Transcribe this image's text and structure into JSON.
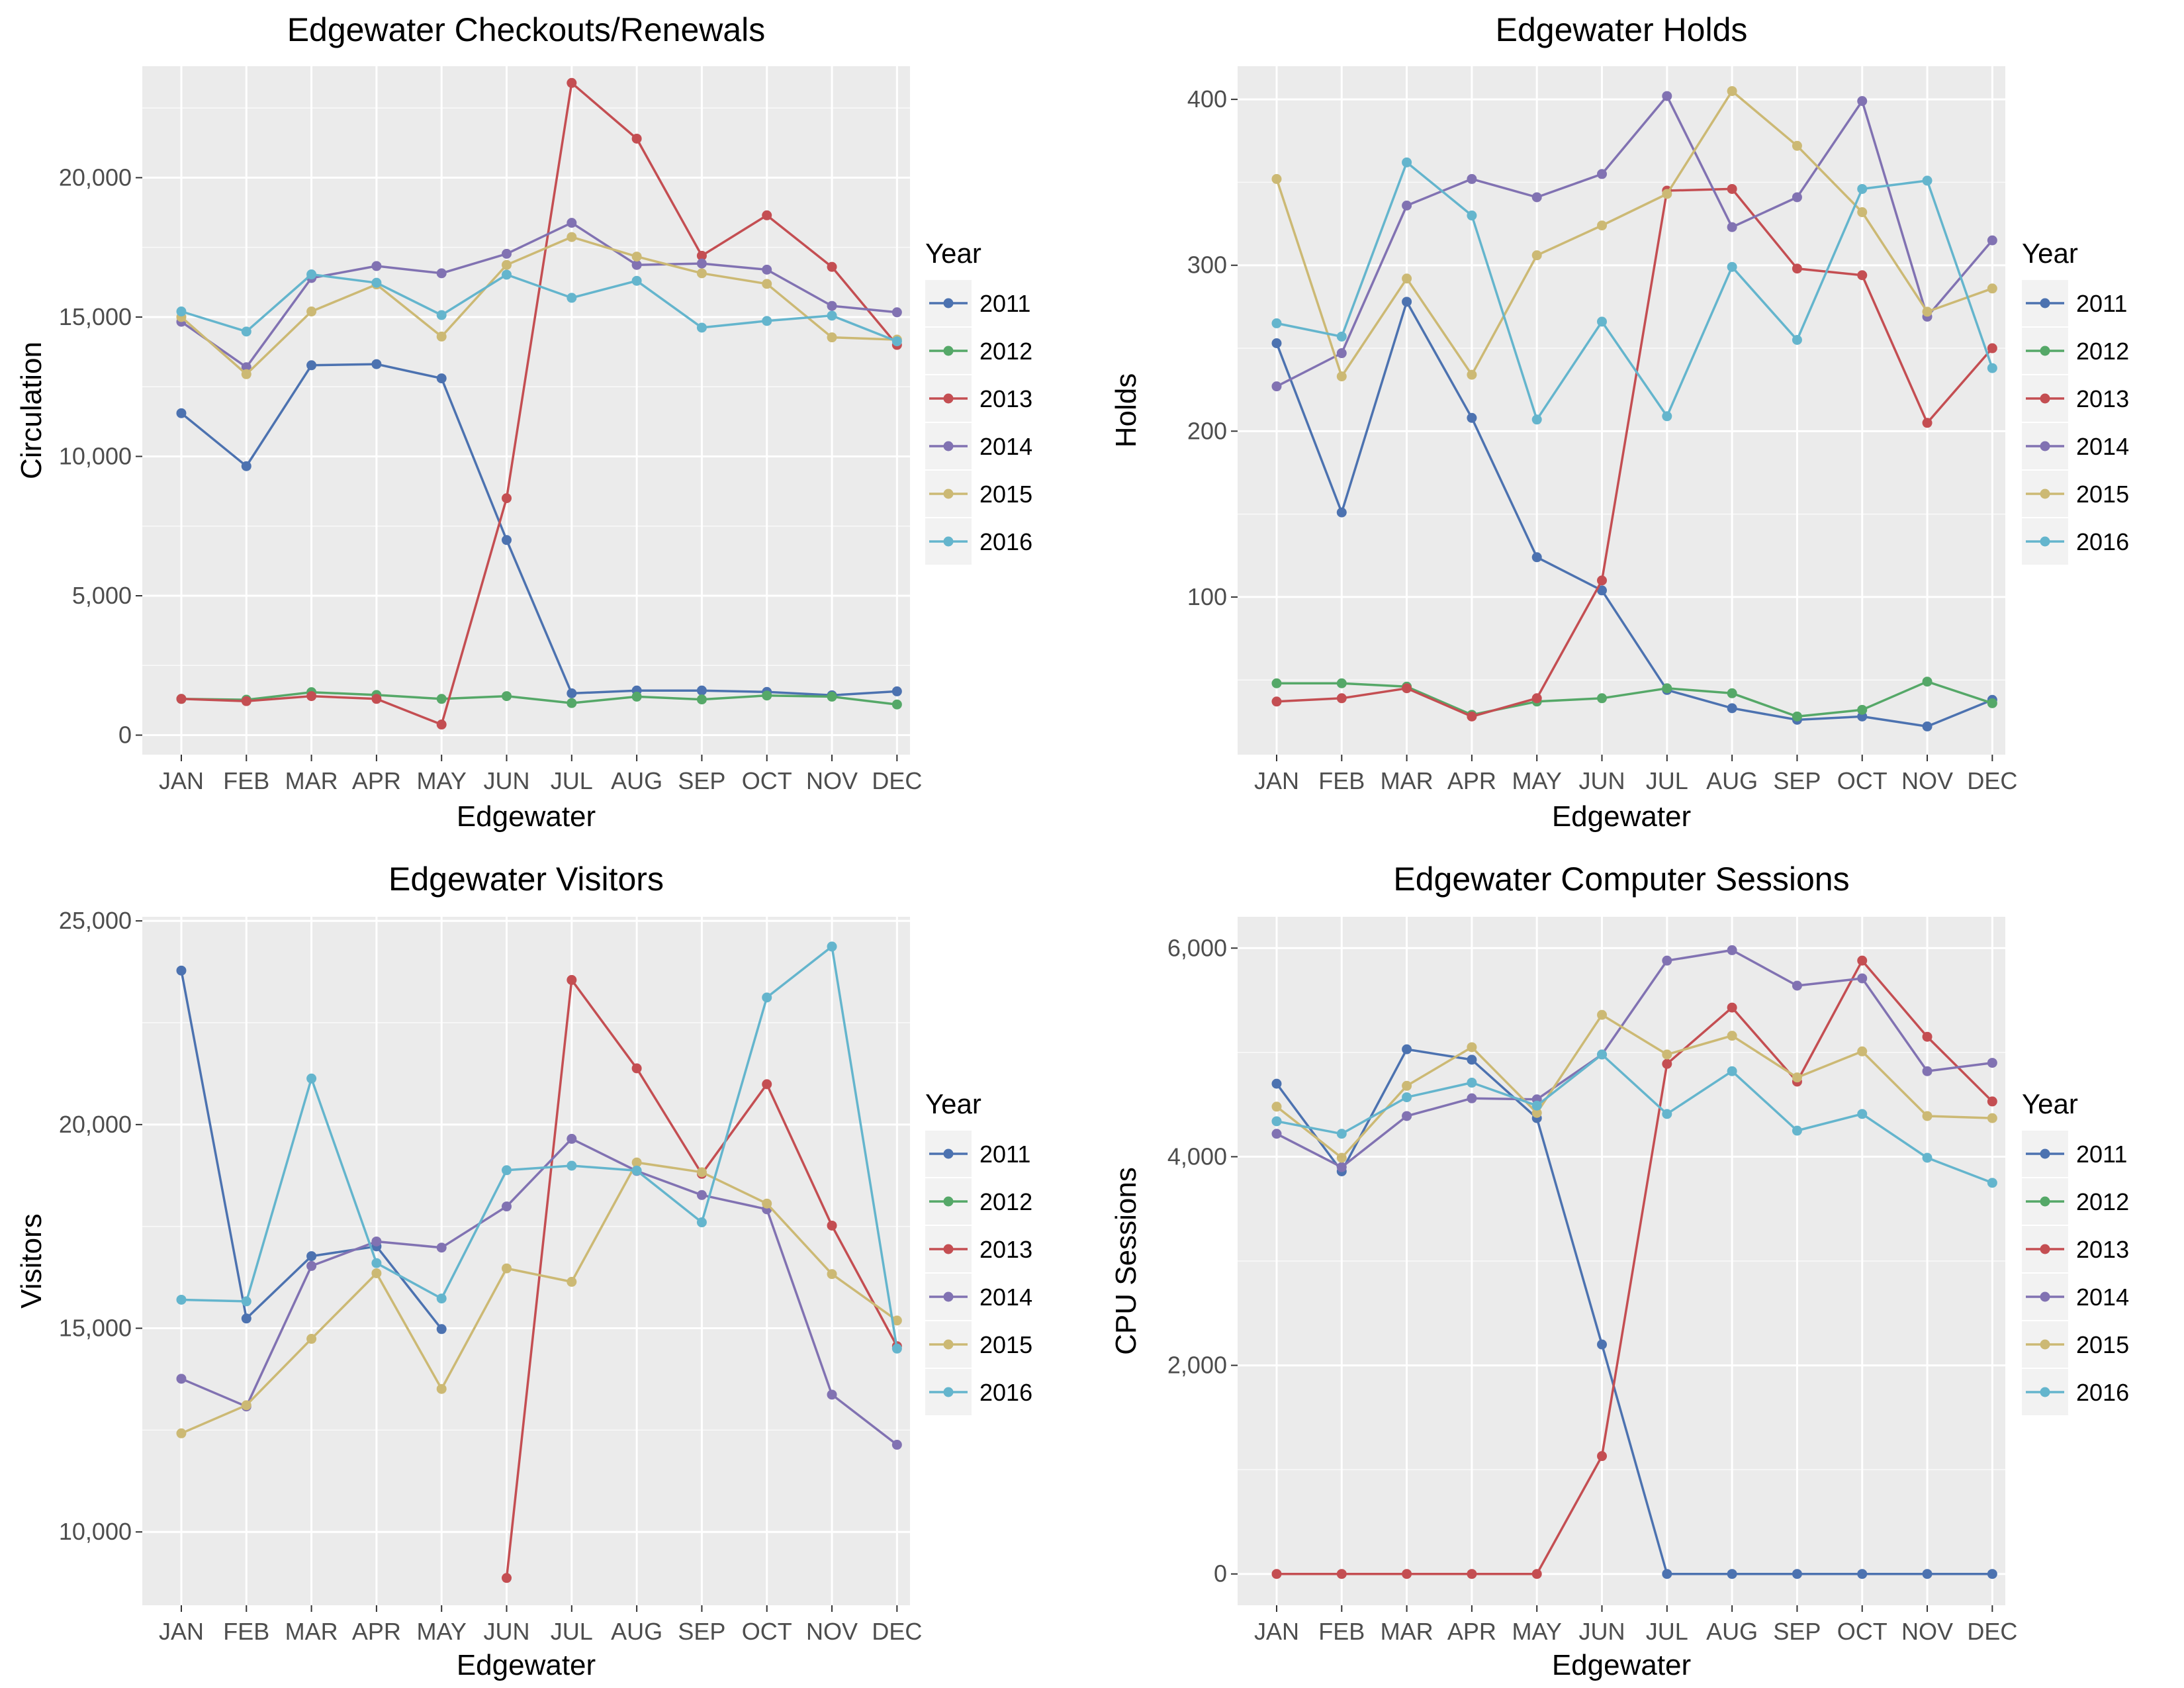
{
  "colors": {
    "2011": "#4c72b0",
    "2012": "#55a868",
    "2013": "#c44e52",
    "2014": "#8172b2",
    "2015": "#ccb974",
    "2016": "#64b5cd",
    "panel_background": "#ebebeb",
    "grid_major": "#ffffff",
    "tick_text": "#4d4d4d"
  },
  "chart_data": [
    {
      "type": "line",
      "title": "Edgewater Checkouts/Renewals",
      "xlabel": "Edgewater",
      "ylabel": "Circulation",
      "categories": [
        "JAN",
        "FEB",
        "MAR",
        "APR",
        "MAY",
        "JUN",
        "JUL",
        "AUG",
        "SEP",
        "OCT",
        "NOV",
        "DEC"
      ],
      "ylim": [
        -700,
        24000
      ],
      "yticks": [
        0,
        5000,
        10000,
        15000,
        20000
      ],
      "ytick_labels": [
        "0",
        "5,000",
        "10,000",
        "15,000",
        "20,000"
      ],
      "grid": true,
      "legend": {
        "title": "Year",
        "position": "right"
      },
      "series": [
        {
          "name": "2011",
          "values": [
            11550,
            9650,
            13270,
            13310,
            12800,
            7000,
            1500,
            1600,
            1600,
            1550,
            1430,
            1570
          ]
        },
        {
          "name": "2012",
          "values": [
            1300,
            1270,
            1540,
            1440,
            1300,
            1400,
            1150,
            1380,
            1280,
            1420,
            1380,
            1100
          ]
        },
        {
          "name": "2013",
          "values": [
            1300,
            1220,
            1400,
            1300,
            380,
            8500,
            23400,
            21400,
            17200,
            18650,
            16800,
            14000
          ]
        },
        {
          "name": "2014",
          "values": [
            14830,
            13200,
            16400,
            16830,
            16570,
            17270,
            18380,
            16870,
            16920,
            16700,
            15400,
            15170
          ]
        },
        {
          "name": "2015",
          "values": [
            15000,
            12950,
            15200,
            16170,
            14300,
            16870,
            17870,
            17170,
            16570,
            16190,
            14270,
            14190
          ]
        },
        {
          "name": "2016",
          "values": [
            15200,
            14480,
            16530,
            16230,
            15070,
            16520,
            15690,
            16300,
            14620,
            14860,
            15050,
            14130
          ]
        }
      ]
    },
    {
      "type": "line",
      "title": "Edgewater Holds",
      "xlabel": "Edgewater",
      "ylabel": "Holds",
      "categories": [
        "JAN",
        "FEB",
        "MAR",
        "APR",
        "MAY",
        "JUN",
        "JUL",
        "AUG",
        "SEP",
        "OCT",
        "NOV",
        "DEC"
      ],
      "ylim": [
        5,
        420
      ],
      "yticks": [
        100,
        200,
        300,
        400
      ],
      "ytick_labels": [
        "100",
        "200",
        "300",
        "400"
      ],
      "grid": true,
      "legend": {
        "title": "Year",
        "position": "right"
      },
      "series": [
        {
          "name": "2011",
          "values": [
            253,
            151,
            278,
            208,
            124,
            104,
            44,
            33,
            26,
            28,
            22,
            38
          ]
        },
        {
          "name": "2012",
          "values": [
            48,
            48,
            46,
            29,
            37,
            39,
            45,
            42,
            28,
            32,
            49,
            36
          ]
        },
        {
          "name": "2013",
          "values": [
            37,
            39,
            45,
            28,
            39,
            110,
            345,
            346,
            298,
            294,
            205,
            250
          ]
        },
        {
          "name": "2014",
          "values": [
            227,
            247,
            336,
            352,
            341,
            355,
            402,
            323,
            341,
            399,
            269,
            315
          ]
        },
        {
          "name": "2015",
          "values": [
            352,
            233,
            292,
            234,
            306,
            324,
            343,
            405,
            372,
            332,
            272,
            286
          ]
        },
        {
          "name": "2016",
          "values": [
            265,
            257,
            362,
            330,
            207,
            266,
            209,
            299,
            255,
            346,
            351,
            238
          ]
        }
      ]
    },
    {
      "type": "line",
      "title": "Edgewater Visitors",
      "xlabel": "Edgewater",
      "ylabel": "Visitors",
      "categories": [
        "JAN",
        "FEB",
        "MAR",
        "APR",
        "MAY",
        "JUN",
        "JUL",
        "AUG",
        "SEP",
        "OCT",
        "NOV",
        "DEC"
      ],
      "ylim": [
        8200,
        25100
      ],
      "yticks": [
        10000,
        15000,
        20000,
        25000
      ],
      "ytick_labels": [
        "10,000",
        "15,000",
        "20,000",
        "25,000"
      ],
      "grid": true,
      "legend": {
        "title": "Year",
        "position": "right"
      },
      "series": [
        {
          "name": "2011",
          "values": [
            23780,
            15240,
            16770,
            17010,
            14980,
            null,
            null,
            null,
            null,
            null,
            null,
            null
          ]
        },
        {
          "name": "2012",
          "values": [
            null,
            null,
            null,
            null,
            null,
            null,
            null,
            null,
            null,
            null,
            null,
            null
          ]
        },
        {
          "name": "2013",
          "values": [
            null,
            null,
            null,
            null,
            null,
            8870,
            23550,
            21380,
            18790,
            20990,
            17520,
            14560
          ]
        },
        {
          "name": "2014",
          "values": [
            13760,
            13080,
            16530,
            17130,
            16980,
            17990,
            19650,
            18860,
            18270,
            17920,
            13370,
            12140
          ]
        },
        {
          "name": "2015",
          "values": [
            12420,
            13110,
            14740,
            16350,
            13510,
            16470,
            16140,
            19070,
            18830,
            18060,
            16330,
            15190
          ]
        },
        {
          "name": "2016",
          "values": [
            15700,
            15660,
            21130,
            16600,
            15730,
            18880,
            18990,
            18870,
            17600,
            23120,
            24370,
            14500
          ]
        }
      ]
    },
    {
      "type": "line",
      "title": "Edgewater Computer Sessions",
      "xlabel": "Edgewater",
      "ylabel": "CPU Sessions",
      "categories": [
        "JAN",
        "FEB",
        "MAR",
        "APR",
        "MAY",
        "JUN",
        "JUL",
        "AUG",
        "SEP",
        "OCT",
        "NOV",
        "DEC"
      ],
      "ylim": [
        -300,
        6300
      ],
      "yticks": [
        0,
        2000,
        4000,
        6000
      ],
      "ytick_labels": [
        "0",
        "2,000",
        "4,000",
        "6,000"
      ],
      "grid": true,
      "legend": {
        "title": "Year",
        "position": "right"
      },
      "series": [
        {
          "name": "2011",
          "values": [
            4700,
            3860,
            5030,
            4930,
            4370,
            2200,
            0,
            0,
            0,
            0,
            0,
            0
          ]
        },
        {
          "name": "2012",
          "values": [
            null,
            null,
            null,
            null,
            null,
            null,
            null,
            null,
            null,
            null,
            null,
            null
          ]
        },
        {
          "name": "2013",
          "values": [
            0,
            0,
            0,
            0,
            0,
            1130,
            4890,
            5430,
            4720,
            5880,
            5150,
            4530
          ]
        },
        {
          "name": "2014",
          "values": [
            4220,
            3900,
            4390,
            4560,
            4550,
            4980,
            5880,
            5980,
            5640,
            5710,
            4820,
            4900
          ]
        },
        {
          "name": "2015",
          "values": [
            4480,
            3990,
            4680,
            5050,
            4420,
            5360,
            4980,
            5160,
            4760,
            5010,
            4390,
            4370
          ]
        },
        {
          "name": "2016",
          "values": [
            4340,
            4220,
            4570,
            4710,
            4490,
            4980,
            4410,
            4820,
            4250,
            4410,
            3990,
            3750
          ]
        }
      ]
    }
  ]
}
